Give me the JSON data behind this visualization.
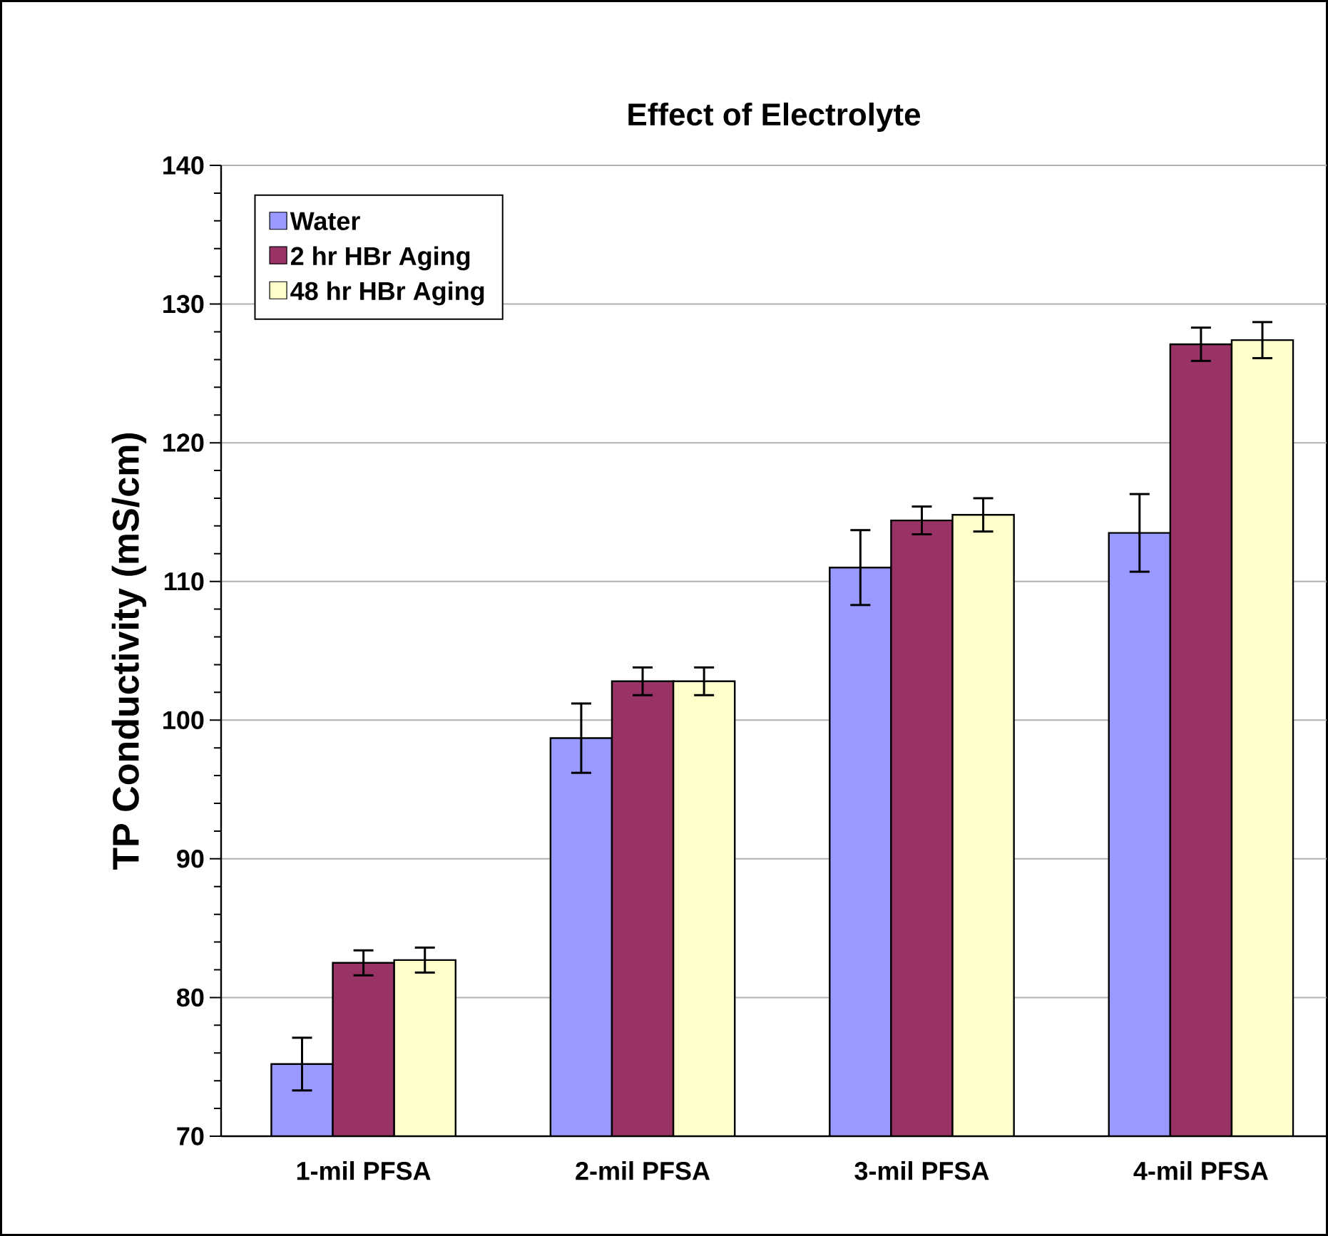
{
  "chart_data": {
    "type": "bar",
    "title": "Effect of Electrolyte",
    "ylabel": "TP Conductivity (mS/cm)",
    "categories": [
      "1-mil PFSA",
      "2-mil PFSA",
      "3-mil PFSA",
      "4-mil PFSA"
    ],
    "series": [
      {
        "name": "Water",
        "color": "#9999ff",
        "values": [
          75.2,
          98.7,
          111.0,
          113.5
        ],
        "errors": [
          1.9,
          2.5,
          2.7,
          2.8
        ]
      },
      {
        "name": "2 hr HBr Aging",
        "color": "#993366",
        "values": [
          82.5,
          102.8,
          114.4,
          127.1
        ],
        "errors": [
          0.9,
          1.0,
          1.0,
          1.2
        ]
      },
      {
        "name": "48 hr HBr Aging",
        "color": "#ffffcc",
        "values": [
          82.7,
          102.8,
          114.8,
          127.4
        ],
        "errors": [
          0.9,
          1.0,
          1.2,
          1.3
        ]
      }
    ],
    "ylim": [
      70,
      140
    ],
    "yticks": [
      70,
      80,
      90,
      100,
      110,
      120,
      130,
      140
    ],
    "grid": "y",
    "legend": "top left"
  }
}
